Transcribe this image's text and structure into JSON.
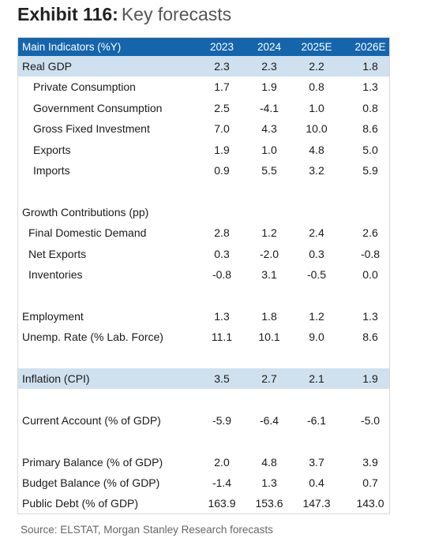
{
  "header": {
    "exhibit": "Exhibit 116:",
    "title": "Key forecasts"
  },
  "table": {
    "columns": [
      "Main Indicators (%Y)",
      "2023",
      "2024",
      "2025E",
      "2026E"
    ],
    "sections": [
      {
        "rows": [
          {
            "label": "Real GDP",
            "values": [
              "2.3",
              "2.3",
              "2.2",
              "1.8"
            ],
            "highlight": true,
            "indent": 0
          },
          {
            "label": "Private Consumption",
            "values": [
              "1.7",
              "1.9",
              "0.8",
              "1.3"
            ],
            "indent": 2
          },
          {
            "label": "Government Consumption",
            "values": [
              "2.5",
              "-4.1",
              "1.0",
              "0.8"
            ],
            "indent": 2
          },
          {
            "label": "Gross Fixed Investment",
            "values": [
              "7.0",
              "4.3",
              "10.0",
              "8.6"
            ],
            "indent": 2
          },
          {
            "label": "Exports",
            "values": [
              "1.9",
              "1.0",
              "4.8",
              "5.0"
            ],
            "indent": 2
          },
          {
            "label": "Imports",
            "values": [
              "0.9",
              "5.5",
              "3.2",
              "5.9"
            ],
            "indent": 2
          }
        ]
      },
      {
        "rows": [
          {
            "label": "Growth Contributions (pp)",
            "indent": 0
          },
          {
            "label": "Final Domestic Demand",
            "values": [
              "2.8",
              "1.2",
              "2.4",
              "2.6"
            ],
            "indent": 1
          },
          {
            "label": "Net Exports",
            "values": [
              "0.3",
              "-2.0",
              "0.3",
              "-0.8"
            ],
            "indent": 1
          },
          {
            "label": "Inventories",
            "values": [
              "-0.8",
              "3.1",
              "-0.5",
              "0.0"
            ],
            "indent": 1
          }
        ]
      },
      {
        "rows": [
          {
            "label": "Employment",
            "values": [
              "1.3",
              "1.8",
              "1.2",
              "1.3"
            ],
            "indent": 0
          },
          {
            "label": "Unemp. Rate (% Lab. Force)",
            "values": [
              "11.1",
              "10.1",
              "9.0",
              "8.6"
            ],
            "indent": 0
          }
        ]
      },
      {
        "rows": [
          {
            "label": "Inflation (CPI)",
            "values": [
              "3.5",
              "2.7",
              "2.1",
              "1.9"
            ],
            "highlight": true,
            "indent": 0
          }
        ]
      },
      {
        "rows": [
          {
            "label": "Current Account (% of GDP)",
            "values": [
              "-5.9",
              "-6.4",
              "-6.1",
              "-5.0"
            ],
            "indent": 0
          }
        ]
      },
      {
        "rows": [
          {
            "label": "Primary Balance (% of GDP)",
            "values": [
              "2.0",
              "4.8",
              "3.7",
              "3.9"
            ],
            "indent": 0
          },
          {
            "label": "Budget Balance (% of GDP)",
            "values": [
              "-1.4",
              "1.3",
              "0.4",
              "0.7"
            ],
            "indent": 0
          },
          {
            "label": "Public Debt (% of GDP)",
            "values": [
              "163.9",
              "153.6",
              "147.3",
              "143.0"
            ],
            "indent": 0
          }
        ]
      }
    ]
  },
  "footer": {
    "source": "Source: ELSTAT, Morgan Stanley Research forecasts"
  }
}
